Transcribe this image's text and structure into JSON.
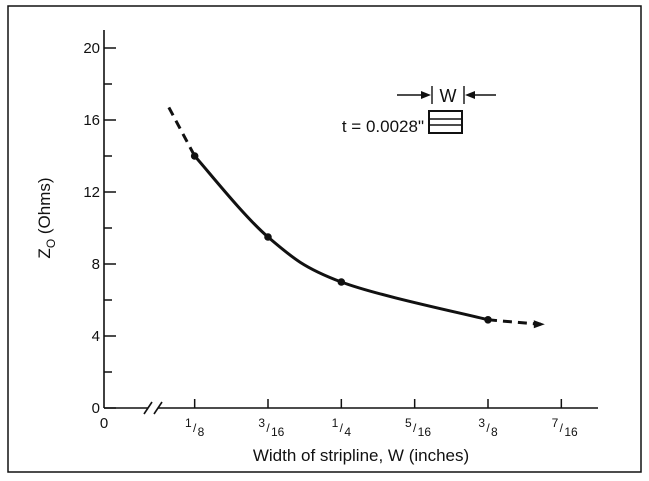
{
  "chart_data": {
    "type": "line",
    "xlabel": "Width of stripline, W (inches)",
    "ylabel": {
      "main": "Z",
      "sub": "O",
      "unit": " (Ohms)"
    },
    "x_axis": {
      "origin_label": "0",
      "broken": true,
      "range": [
        0.09375,
        0.46875
      ],
      "ticks": [
        {
          "value": 0.125,
          "num": "1",
          "den": "8"
        },
        {
          "value": 0.1875,
          "num": "3",
          "den": "16"
        },
        {
          "value": 0.25,
          "num": "1",
          "den": "4"
        },
        {
          "value": 0.3125,
          "num": "5",
          "den": "16"
        },
        {
          "value": 0.375,
          "num": "3",
          "den": "8"
        },
        {
          "value": 0.4375,
          "num": "7",
          "den": "16"
        }
      ]
    },
    "y_axis": {
      "range": [
        0,
        21
      ],
      "major_ticks": [
        0,
        4,
        8,
        12,
        16,
        20
      ],
      "minor_step": 2
    },
    "series": [
      {
        "points": [
          {
            "x": 0.125,
            "y": 14.0
          },
          {
            "x": 0.1875,
            "y": 9.5
          },
          {
            "x": 0.25,
            "y": 7.0
          },
          {
            "x": 0.375,
            "y": 4.9
          }
        ],
        "extrapolated_low": {
          "x": 0.103,
          "y": 16.7
        },
        "extrapolated_high": {
          "x": 0.42,
          "y": 4.65
        }
      }
    ],
    "inset": {
      "width_label": "W",
      "thickness_label": "t = 0.0028\""
    },
    "grid": false
  }
}
